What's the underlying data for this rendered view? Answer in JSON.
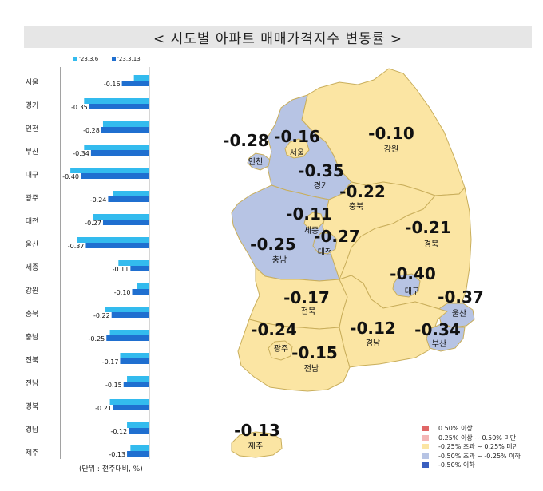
{
  "title": "< 시도별 아파트 매매가격지수 변동률 >",
  "unit_note": "(단위 : 전주대비, %)",
  "colors": {
    "series_prev": "#33bbee",
    "series_curr": "#1f6fd0",
    "band_up_050": "#e06666",
    "band_025_050": "#f4b6b6",
    "band_flat": "#fbe5a3",
    "band_down_025_050": "#b7c4e4",
    "band_down_050": "#3a5fbf",
    "map_border": "#c9ae5b"
  },
  "chart_data": {
    "type": "bar",
    "orientation": "horizontal",
    "categories": [
      "서울",
      "경기",
      "인천",
      "부산",
      "대구",
      "광주",
      "대전",
      "울산",
      "세종",
      "강원",
      "충북",
      "충남",
      "전북",
      "전남",
      "경북",
      "경남",
      "제주"
    ],
    "series": [
      {
        "name": "'23.3.6",
        "values": [
          -0.09,
          -0.38,
          -0.27,
          -0.38,
          -0.46,
          -0.21,
          -0.33,
          -0.42,
          -0.18,
          -0.07,
          -0.26,
          -0.23,
          -0.17,
          -0.13,
          -0.23,
          -0.13,
          -0.11
        ]
      },
      {
        "name": "'23.3.13",
        "values": [
          -0.16,
          -0.35,
          -0.28,
          -0.34,
          -0.4,
          -0.24,
          -0.27,
          -0.37,
          -0.11,
          -0.1,
          -0.22,
          -0.25,
          -0.17,
          -0.15,
          -0.21,
          -0.12,
          -0.13
        ]
      }
    ],
    "value_labels": [
      "-0.16",
      "-0.35",
      "-0.28",
      "-0.34",
      "-0.40",
      "-0.24",
      "-0.27",
      "-0.37",
      "-0.11",
      "-0.10",
      "-0.22",
      "-0.25",
      "-0.17",
      "-0.15",
      "-0.21",
      "-0.12",
      "-0.13"
    ],
    "legend_position": "top"
  },
  "map": {
    "regions": [
      {
        "id": "gangwon",
        "name": "강원",
        "value": "-0.10",
        "band": "flat"
      },
      {
        "id": "gyeonggi",
        "name": "경기",
        "value": "-0.35",
        "band": "down_025_050"
      },
      {
        "id": "incheon",
        "name": "인천",
        "value": "-0.28",
        "band": "down_025_050"
      },
      {
        "id": "seoul",
        "name": "서울",
        "value": "-0.16",
        "band": "flat"
      },
      {
        "id": "chungbuk",
        "name": "충북",
        "value": "-0.22",
        "band": "flat"
      },
      {
        "id": "sejong",
        "name": "세종",
        "value": "-0.11",
        "band": "flat"
      },
      {
        "id": "chungnam",
        "name": "충남",
        "value": "-0.25",
        "band": "down_025_050"
      },
      {
        "id": "daejeon",
        "name": "대전",
        "value": "-0.27",
        "band": "down_025_050"
      },
      {
        "id": "gyeongbuk",
        "name": "경북",
        "value": "-0.21",
        "band": "flat"
      },
      {
        "id": "daegu",
        "name": "대구",
        "value": "-0.40",
        "band": "down_025_050"
      },
      {
        "id": "ulsan",
        "name": "울산",
        "value": "-0.37",
        "band": "down_025_050"
      },
      {
        "id": "jeonbuk",
        "name": "전북",
        "value": "-0.17",
        "band": "flat"
      },
      {
        "id": "gwangju",
        "name": "광주",
        "value": "-0.24",
        "band": "flat"
      },
      {
        "id": "jeonnam",
        "name": "전남",
        "value": "-0.15",
        "band": "flat"
      },
      {
        "id": "gyeongnam",
        "name": "경남",
        "value": "-0.12",
        "band": "flat"
      },
      {
        "id": "busan",
        "name": "부산",
        "value": "-0.34",
        "band": "down_025_050"
      },
      {
        "id": "jeju",
        "name": "제주",
        "value": "-0.13",
        "band": "flat"
      }
    ],
    "legend": [
      {
        "label": "0.50% 이상",
        "color": "#e06666"
      },
      {
        "label": "0.25% 이상 ~ 0.50% 미만",
        "color": "#f4b6b6"
      },
      {
        "label": "-0.25% 초과 ~ 0.25% 미만",
        "color": "#fbe5a3"
      },
      {
        "label": "-0.50% 초과 ~ -0.25% 이하",
        "color": "#b7c4e4"
      },
      {
        "label": "-0.50% 이하",
        "color": "#3a5fbf"
      }
    ]
  }
}
